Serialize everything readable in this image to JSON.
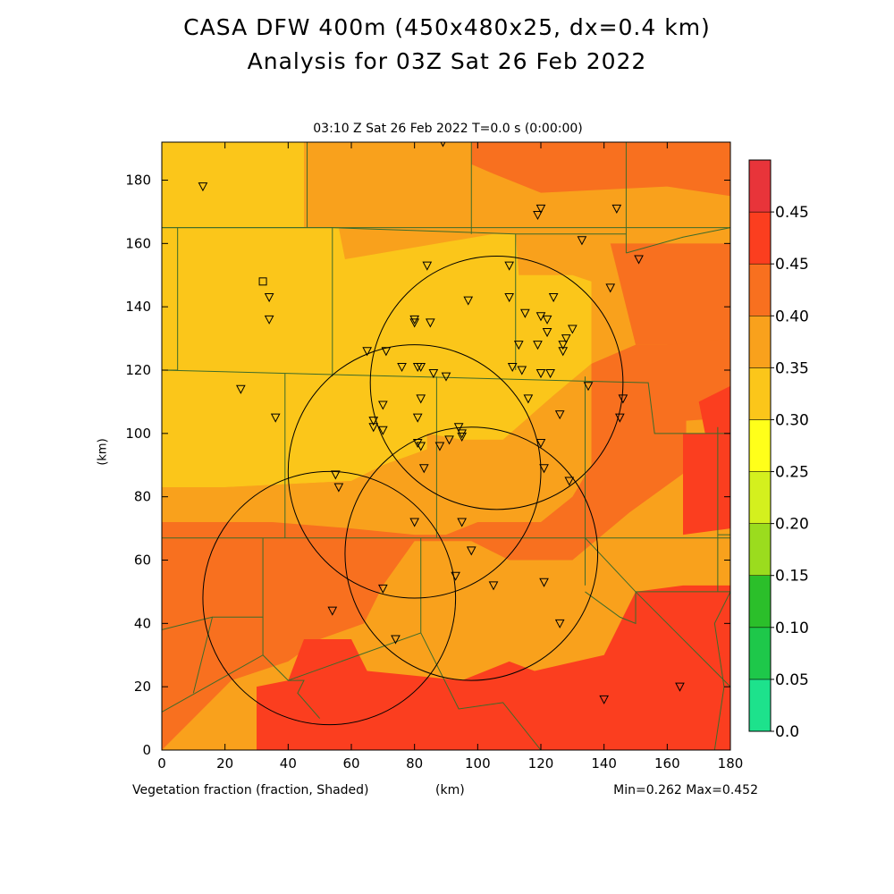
{
  "header": {
    "title_line1": "CASA DFW 400m (450x480x25, dx=0.4 km)",
    "title_line2": "Analysis for 03Z Sat 26 Feb 2022",
    "subtitle": "03:10 Z Sat 26 Feb 2022    T=0.0 s (0:00:00)"
  },
  "footer": {
    "variable_label": "Vegetation fraction (fraction, Shaded)",
    "x_unit": "(km)",
    "minmax": "Min=0.262 Max=0.452"
  },
  "y_unit": "(km)",
  "chart_data": {
    "type": "heatmap",
    "xlim": [
      0,
      180
    ],
    "ylim": [
      0,
      192
    ],
    "x_ticks": [
      0,
      20,
      40,
      60,
      80,
      100,
      120,
      140,
      160,
      180
    ],
    "y_ticks": [
      0,
      20,
      40,
      60,
      80,
      100,
      120,
      140,
      160,
      180
    ],
    "x_tick_labels": [
      "0",
      "20",
      "40",
      "60",
      "80",
      "100",
      "120",
      "140",
      "160",
      "180"
    ],
    "y_tick_labels": [
      "0",
      "20",
      "40",
      "60",
      "80",
      "100",
      "120",
      "140",
      "160",
      "180"
    ],
    "colorbar": {
      "labels": [
        "0.0",
        "0.05",
        "0.10",
        "0.15",
        "0.20",
        "0.25",
        "0.30",
        "0.35",
        "0.40",
        "0.45",
        "0.45"
      ],
      "colors": [
        "#1de28c",
        "#1ec84a",
        "#2bbf2a",
        "#9bdc1e",
        "#d4f01e",
        "#ffff1a",
        "#fbc61a",
        "#f9a11c",
        "#f8701f",
        "#fb3e1f",
        "#e8343a"
      ]
    },
    "zones": [
      {
        "color": "#f9a11c",
        "poly": [
          [
            0,
            192
          ],
          [
            180,
            192
          ],
          [
            180,
            0
          ],
          [
            0,
            0
          ]
        ]
      },
      {
        "color": "#fbc61a",
        "poly": [
          [
            0,
            192
          ],
          [
            45,
            192
          ],
          [
            45,
            165
          ],
          [
            0,
            165
          ]
        ]
      },
      {
        "color": "#fbc61a",
        "poly": [
          [
            0,
            165
          ],
          [
            56,
            165
          ],
          [
            58,
            155
          ],
          [
            105,
            163
          ],
          [
            112,
            163
          ],
          [
            113,
            150
          ],
          [
            130,
            150
          ],
          [
            136,
            148
          ],
          [
            136,
            122
          ],
          [
            124,
            112
          ],
          [
            108,
            98
          ],
          [
            95,
            98
          ],
          [
            84,
            100
          ],
          [
            84,
            95
          ],
          [
            70,
            90
          ],
          [
            60,
            85
          ],
          [
            20,
            83
          ],
          [
            0,
            83
          ]
        ]
      },
      {
        "color": "#f9a11c",
        "poly": [
          [
            0,
            83
          ],
          [
            20,
            83
          ],
          [
            60,
            85
          ],
          [
            70,
            90
          ],
          [
            84,
            95
          ],
          [
            84,
            100
          ],
          [
            95,
            98
          ],
          [
            108,
            98
          ],
          [
            124,
            112
          ],
          [
            136,
            122
          ],
          [
            136,
            90
          ],
          [
            130,
            80
          ],
          [
            120,
            72
          ],
          [
            100,
            72
          ],
          [
            90,
            68
          ],
          [
            80,
            68
          ],
          [
            60,
            70
          ],
          [
            35,
            72
          ],
          [
            0,
            72
          ]
        ]
      },
      {
        "color": "#f8701f",
        "poly": [
          [
            0,
            72
          ],
          [
            35,
            72
          ],
          [
            60,
            70
          ],
          [
            80,
            68
          ],
          [
            90,
            68
          ],
          [
            100,
            72
          ],
          [
            120,
            72
          ],
          [
            130,
            80
          ],
          [
            136,
            90
          ],
          [
            136,
            122
          ],
          [
            150,
            128
          ],
          [
            160,
            128
          ],
          [
            168,
            150
          ],
          [
            180,
            150
          ],
          [
            180,
            105
          ],
          [
            166,
            104
          ],
          [
            166,
            88
          ],
          [
            148,
            75
          ],
          [
            130,
            60
          ],
          [
            110,
            60
          ],
          [
            98,
            66
          ],
          [
            80,
            66
          ],
          [
            70,
            52
          ],
          [
            64,
            40
          ],
          [
            50,
            35
          ],
          [
            40,
            28
          ],
          [
            22,
            22
          ],
          [
            10,
            10
          ],
          [
            0,
            0
          ]
        ]
      },
      {
        "color": "#f8701f",
        "poly": [
          [
            142,
            160
          ],
          [
            180,
            160
          ],
          [
            180,
            130
          ],
          [
            160,
            128
          ],
          [
            150,
            128
          ]
        ]
      },
      {
        "color": "#f8701f",
        "poly": [
          [
            98,
            192
          ],
          [
            180,
            192
          ],
          [
            180,
            175
          ],
          [
            160,
            178
          ],
          [
            120,
            176
          ],
          [
            105,
            182
          ],
          [
            98,
            185
          ]
        ]
      },
      {
        "color": "#fb3e1f",
        "poly": [
          [
            30,
            0
          ],
          [
            30,
            20
          ],
          [
            40,
            22
          ],
          [
            45,
            35
          ],
          [
            60,
            35
          ],
          [
            65,
            25
          ],
          [
            75,
            24
          ],
          [
            95,
            22
          ],
          [
            110,
            28
          ],
          [
            118,
            25
          ],
          [
            140,
            30
          ],
          [
            150,
            50
          ],
          [
            165,
            52
          ],
          [
            180,
            52
          ],
          [
            180,
            0
          ]
        ]
      },
      {
        "color": "#fb3e1f",
        "poly": [
          [
            165,
            100
          ],
          [
            180,
            100
          ],
          [
            180,
            70
          ],
          [
            165,
            68
          ]
        ]
      },
      {
        "color": "#fb3e1f",
        "poly": [
          [
            170,
            110
          ],
          [
            180,
            115
          ],
          [
            180,
            100
          ],
          [
            172,
            100
          ]
        ]
      }
    ],
    "boundaries": [
      [
        [
          0,
          165
        ],
        [
          180,
          165
        ]
      ],
      [
        [
          0,
          165
        ],
        [
          5,
          165
        ],
        [
          5,
          120
        ],
        [
          0,
          120
        ]
      ],
      [
        [
          46,
          192
        ],
        [
          46,
          165
        ]
      ],
      [
        [
          98,
          192
        ],
        [
          98,
          163
        ]
      ],
      [
        [
          147,
          192
        ],
        [
          147,
          157
        ]
      ],
      [
        [
          5,
          165
        ],
        [
          54,
          165
        ],
        [
          54,
          118
        ]
      ],
      [
        [
          54,
          165
        ],
        [
          112,
          163
        ],
        [
          112,
          120
        ]
      ],
      [
        [
          112,
          163
        ],
        [
          147,
          163
        ]
      ],
      [
        [
          147,
          157
        ],
        [
          165,
          162
        ],
        [
          180,
          165
        ]
      ],
      [
        [
          0,
          120
        ],
        [
          154,
          116
        ],
        [
          156,
          100
        ],
        [
          180,
          100
        ]
      ],
      [
        [
          39,
          119
        ],
        [
          39,
          67
        ]
      ],
      [
        [
          87,
          118
        ],
        [
          87,
          67
        ]
      ],
      [
        [
          134,
          118
        ],
        [
          134,
          67
        ]
      ],
      [
        [
          0,
          67
        ],
        [
          180,
          67
        ]
      ],
      [
        [
          32,
          67
        ],
        [
          32,
          42
        ],
        [
          16,
          42
        ],
        [
          10,
          18
        ]
      ],
      [
        [
          0,
          38
        ],
        [
          16,
          42
        ]
      ],
      [
        [
          32,
          42
        ],
        [
          32,
          30
        ],
        [
          0,
          12
        ]
      ],
      [
        [
          32,
          30
        ],
        [
          40,
          22
        ],
        [
          45,
          22
        ],
        [
          43,
          18
        ],
        [
          50,
          10
        ]
      ],
      [
        [
          40,
          22
        ],
        [
          82,
          37
        ]
      ],
      [
        [
          82,
          37
        ],
        [
          94,
          13
        ],
        [
          108,
          15
        ],
        [
          120,
          0
        ]
      ],
      [
        [
          82,
          67
        ],
        [
          82,
          37
        ]
      ],
      [
        [
          134,
          67
        ],
        [
          150,
          50
        ],
        [
          180,
          50
        ]
      ],
      [
        [
          150,
          50
        ],
        [
          150,
          40
        ],
        [
          145,
          42
        ],
        [
          134,
          50
        ]
      ],
      [
        [
          134,
          67
        ],
        [
          134,
          52
        ]
      ],
      [
        [
          150,
          50
        ],
        [
          170,
          30
        ],
        [
          180,
          20
        ]
      ],
      [
        [
          180,
          50
        ],
        [
          175,
          40
        ],
        [
          178,
          20
        ],
        [
          175,
          0
        ]
      ],
      [
        [
          175,
          0
        ],
        [
          165,
          0
        ]
      ],
      [
        [
          176,
          102
        ],
        [
          176,
          50
        ]
      ],
      [
        [
          176,
          68
        ],
        [
          180,
          68
        ]
      ]
    ],
    "circles": [
      {
        "cx": 106,
        "cy": 116,
        "r": 40
      },
      {
        "cx": 80,
        "cy": 88,
        "r": 40
      },
      {
        "cx": 98,
        "cy": 62,
        "r": 40
      },
      {
        "cx": 53,
        "cy": 48,
        "r": 40
      }
    ],
    "stations": [
      [
        13,
        178
      ],
      [
        89,
        192
      ],
      [
        119,
        169
      ],
      [
        120,
        171
      ],
      [
        144,
        171
      ],
      [
        133,
        161
      ],
      [
        151,
        155
      ],
      [
        142,
        146
      ],
      [
        34,
        143
      ],
      [
        34,
        136
      ],
      [
        84,
        153
      ],
      [
        110,
        153
      ],
      [
        97,
        142
      ],
      [
        110,
        143
      ],
      [
        115,
        138
      ],
      [
        124,
        143
      ],
      [
        80,
        136
      ],
      [
        80,
        135
      ],
      [
        85,
        135
      ],
      [
        120,
        137
      ],
      [
        122,
        136
      ],
      [
        122,
        132
      ],
      [
        130,
        133
      ],
      [
        128,
        130
      ],
      [
        113,
        128
      ],
      [
        119,
        128
      ],
      [
        127,
        128
      ],
      [
        127,
        126
      ],
      [
        65,
        126
      ],
      [
        71,
        126
      ],
      [
        76,
        121
      ],
      [
        81,
        121
      ],
      [
        82,
        121
      ],
      [
        86,
        119
      ],
      [
        90,
        118
      ],
      [
        111,
        121
      ],
      [
        114,
        120
      ],
      [
        120,
        119
      ],
      [
        123,
        119
      ],
      [
        135,
        115
      ],
      [
        146,
        111
      ],
      [
        25,
        114
      ],
      [
        70,
        109
      ],
      [
        82,
        111
      ],
      [
        116,
        111
      ],
      [
        126,
        106
      ],
      [
        145,
        105
      ],
      [
        36,
        105
      ],
      [
        67,
        104
      ],
      [
        67,
        102
      ],
      [
        70,
        101
      ],
      [
        81,
        105
      ],
      [
        94,
        102
      ],
      [
        95,
        99
      ],
      [
        91,
        98
      ],
      [
        81,
        97
      ],
      [
        82,
        96
      ],
      [
        88,
        96
      ],
      [
        95,
        100
      ],
      [
        120,
        97
      ],
      [
        121,
        89
      ],
      [
        129,
        85
      ],
      [
        55,
        87
      ],
      [
        56,
        83
      ],
      [
        83,
        89
      ],
      [
        80,
        72
      ],
      [
        95,
        72
      ],
      [
        98,
        63
      ],
      [
        93,
        55
      ],
      [
        105,
        52
      ],
      [
        121,
        53
      ],
      [
        70,
        51
      ],
      [
        54,
        44
      ],
      [
        74,
        35
      ],
      [
        126,
        40
      ],
      [
        140,
        16
      ],
      [
        164,
        20
      ]
    ],
    "square": [
      32,
      148
    ]
  }
}
